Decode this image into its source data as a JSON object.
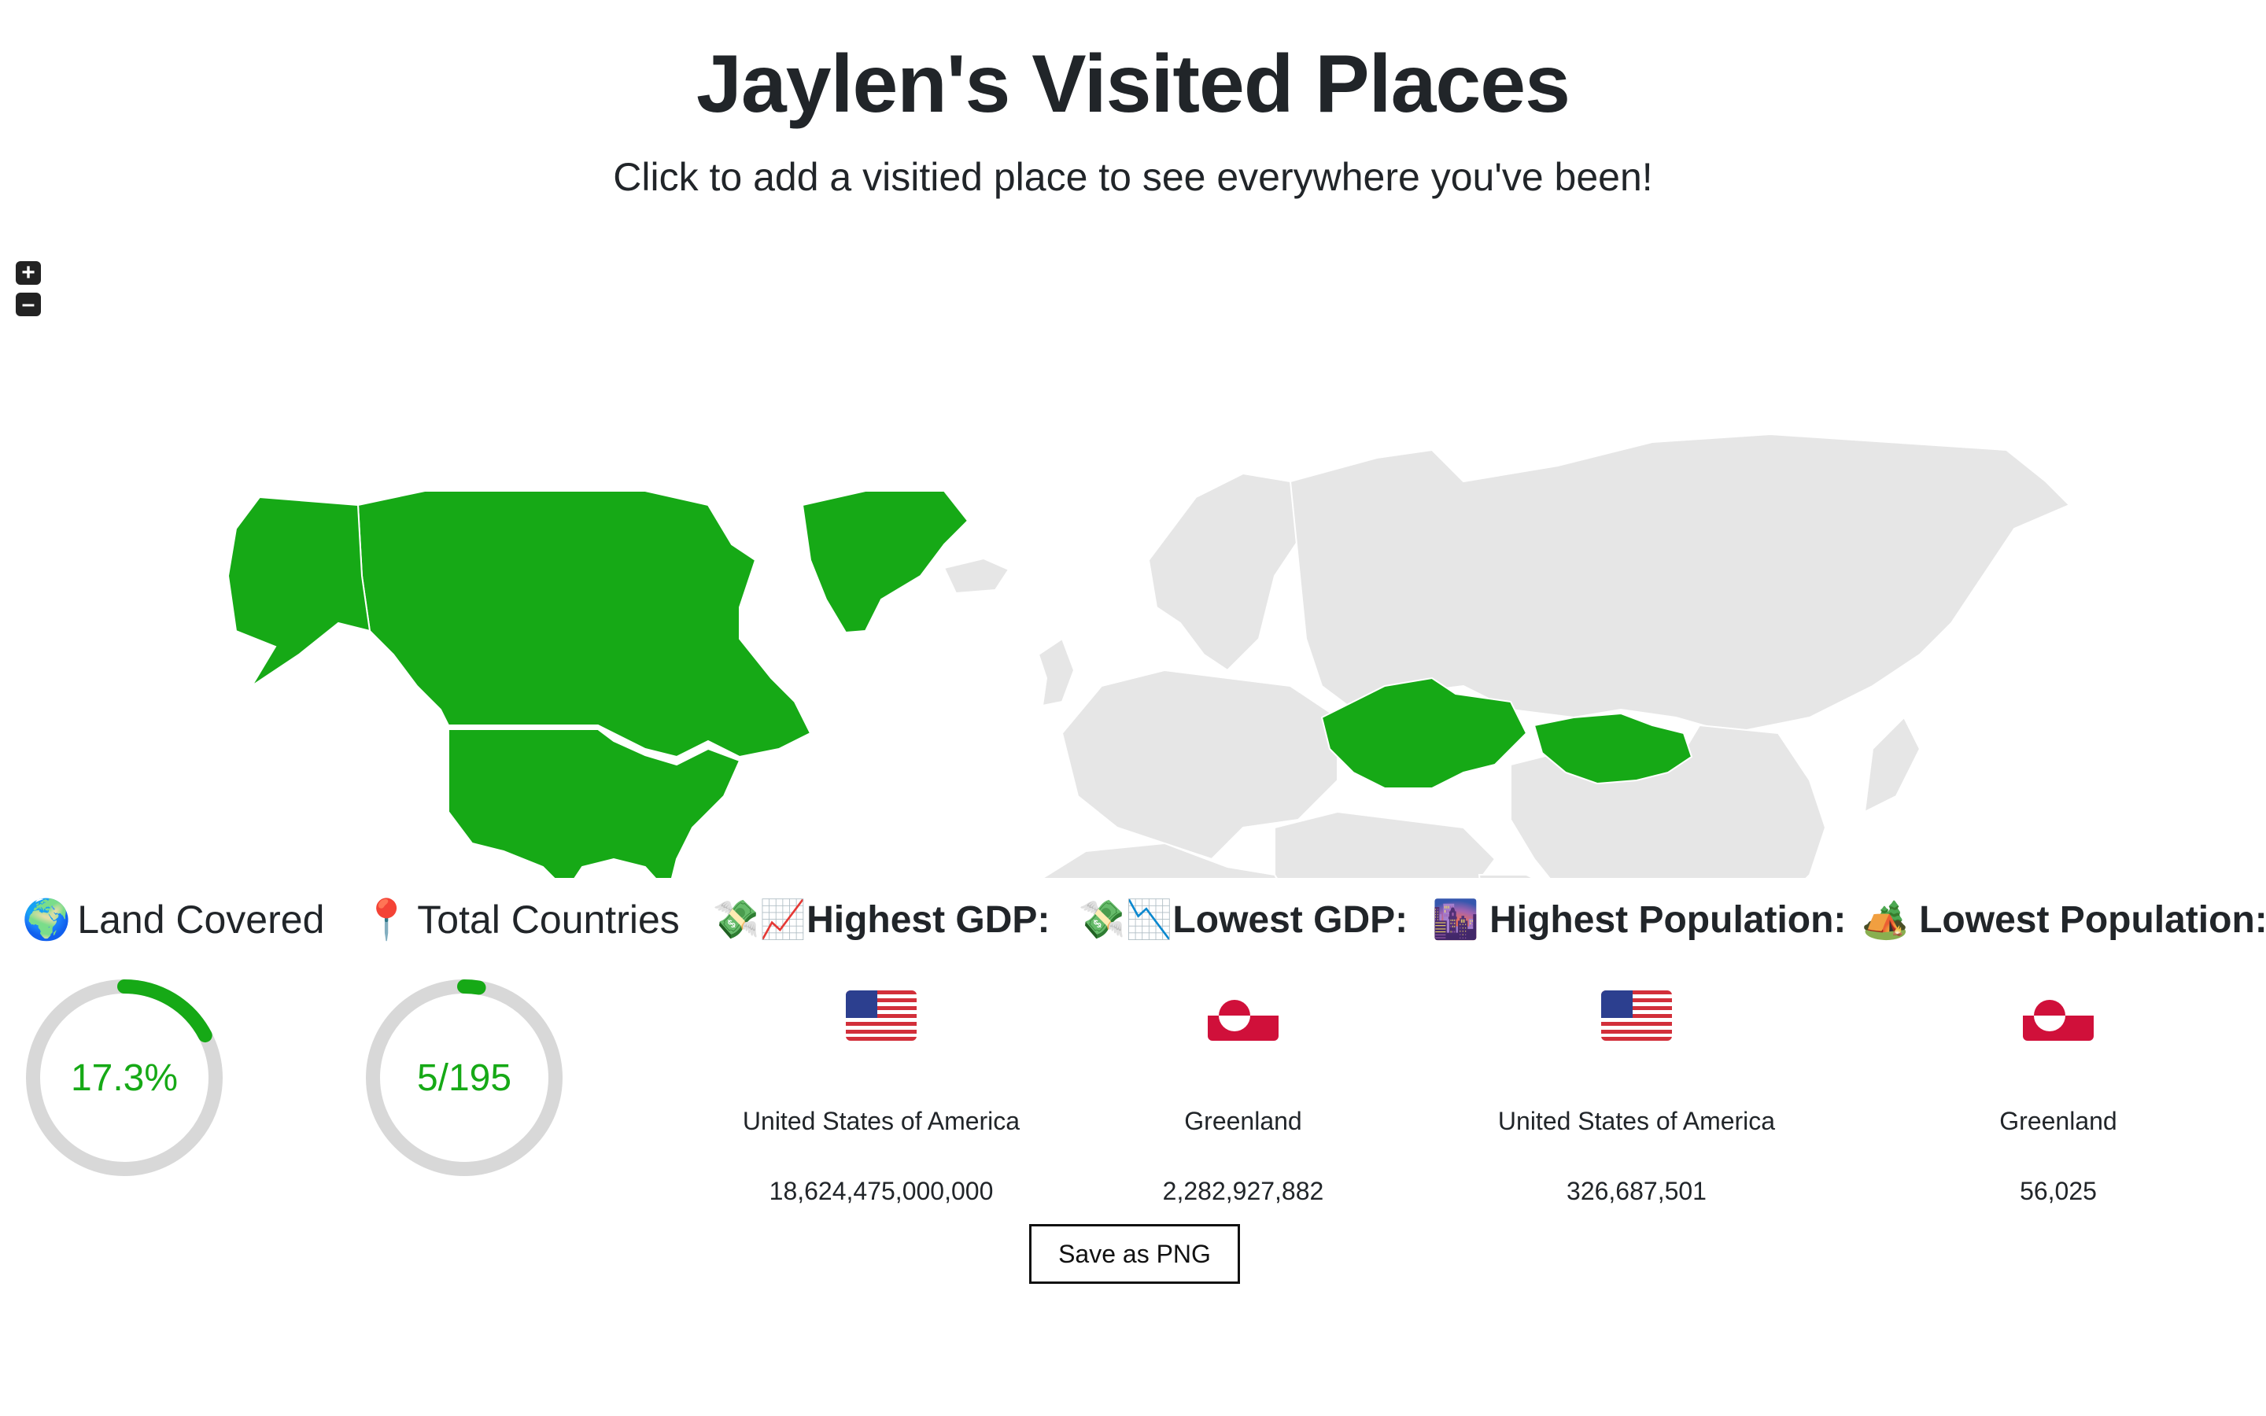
{
  "header": {
    "title": "Jaylen's Visited Places",
    "subtitle": "Click to add a visitied place to see everywhere you've been!"
  },
  "map": {
    "zoom_in_label": "+",
    "zoom_out_label": "–",
    "visited_color": "#16a916",
    "unvisited_color": "#e6e6e6",
    "visited": [
      "Canada",
      "United States of America",
      "Greenland",
      "Kazakhstan",
      "Mongolia"
    ]
  },
  "stats": {
    "land_covered": {
      "icon": "globe-icon",
      "emoji": "🌍",
      "label": "Land Covered",
      "value": "17.3%",
      "fraction": 0.173
    },
    "total_countries": {
      "icon": "pin-icon",
      "emoji": "📍",
      "label": "Total Countries",
      "value": "5/195",
      "fraction": 0.0256
    }
  },
  "metrics": [
    {
      "icon": "money-chart-up-icon",
      "emoji": "💸📈",
      "label": "Highest GDP:",
      "flag": "us-flag",
      "country": "United States of America",
      "value": "18,624,475,000,000"
    },
    {
      "icon": "money-chart-down-icon",
      "emoji": "💸📉",
      "label": "Lowest GDP:",
      "flag": "greenland-flag",
      "country": "Greenland",
      "value": "2,282,927,882"
    },
    {
      "icon": "city-icon",
      "emoji": "🌆",
      "label": "Highest Population:",
      "flag": "us-flag",
      "country": "United States of America",
      "value": "326,687,501"
    },
    {
      "icon": "camping-icon",
      "emoji": "🏕️",
      "label": "Lowest Population:",
      "flag": "greenland-flag",
      "country": "Greenland",
      "value": "56,025"
    }
  ],
  "actions": {
    "save_label": "Save as PNG"
  }
}
